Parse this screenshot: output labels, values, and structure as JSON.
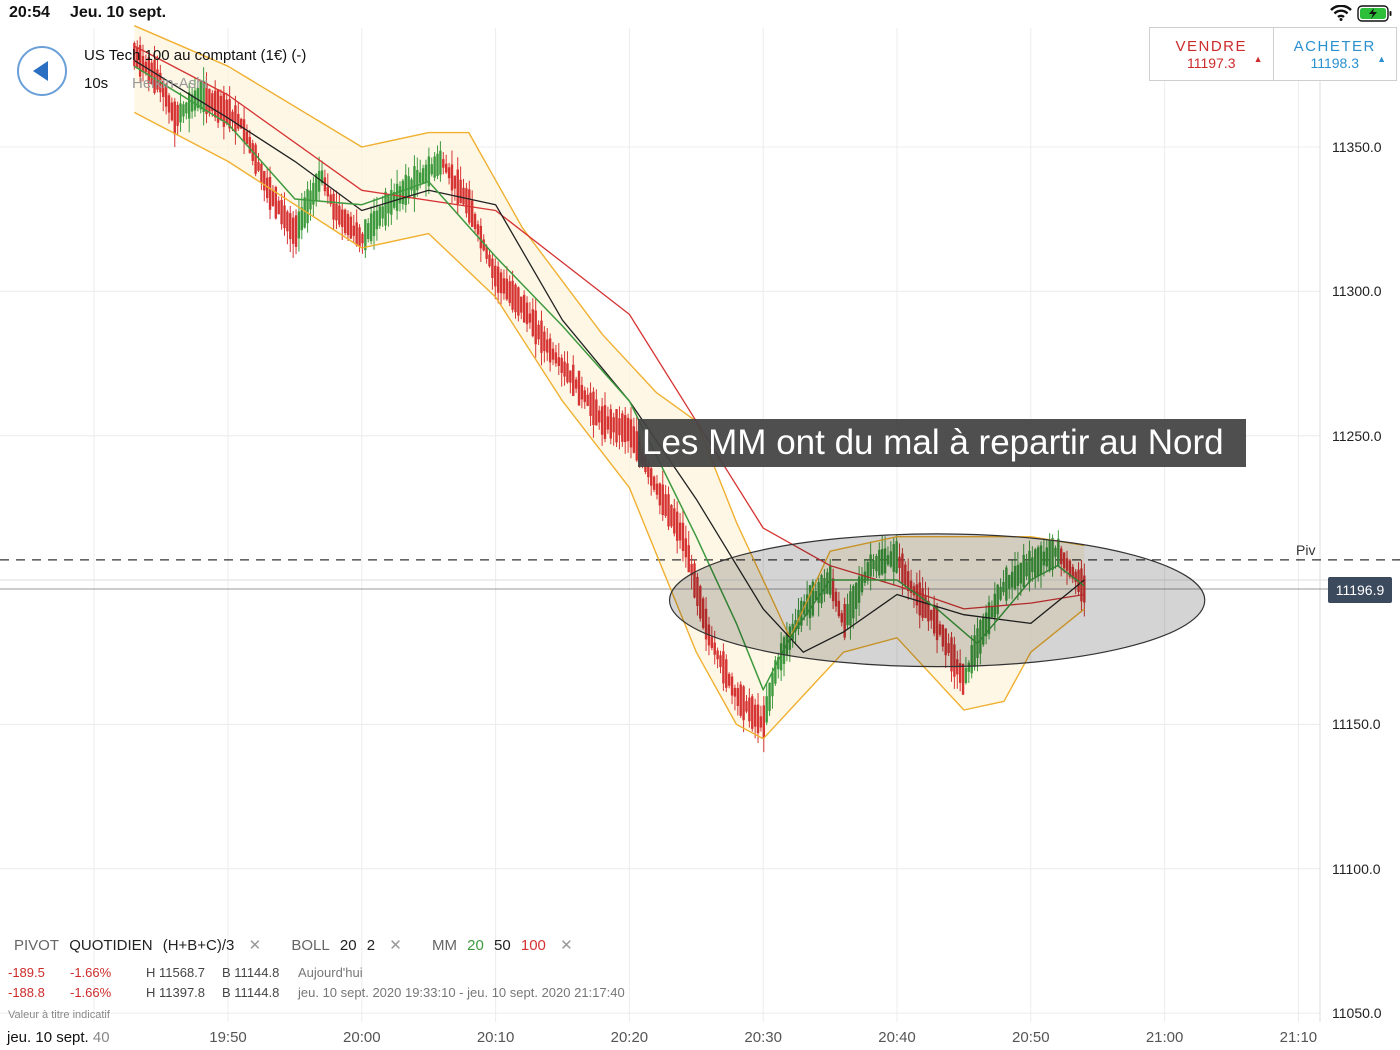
{
  "status_bar": {
    "time": "20:54",
    "date": "Jeu. 10 sept.",
    "wifi_icon": "wifi-icon",
    "battery_icon": "battery-charging-icon"
  },
  "instrument": {
    "name": "US Tech 100 au comptant (1€) (-)",
    "interval": "10s",
    "chart_type": "Heikin-Ashi"
  },
  "trade": {
    "sell_label": "VENDRE",
    "sell_price": "11197.3",
    "buy_label": "ACHETER",
    "buy_price": "11198.3"
  },
  "annotation": "Les MM ont du mal à repartir au Nord",
  "pivot_label": "Piv",
  "current_price": "11196.9",
  "legend": {
    "pivot": "PIVOT",
    "pivot_period": "QUOTIDIEN",
    "pivot_formula": "(H+B+C)/3",
    "boll": "BOLL",
    "boll_period": "20",
    "boll_dev": "2",
    "mm": "MM",
    "mm1": "20",
    "mm2": "50",
    "mm3": "100",
    "close_icon": "close-icon"
  },
  "stats": [
    {
      "change": "-189.5",
      "pct": "-1.66%",
      "high": "H 11568.7",
      "low": "B 11144.8",
      "period": "Aujourd'hui"
    },
    {
      "change": "-188.8",
      "pct": "-1.66%",
      "high": "H 11397.8",
      "low": "B 11144.8",
      "period": "jeu. 10 sept. 2020 19:33:10 - jeu. 10 sept. 2020 21:17:40"
    }
  ],
  "indicative_note": "Valeur à titre indicatif",
  "x_date_label": "jeu. 10 sept.",
  "x_date_suffix": "40",
  "colors": {
    "up": "#3e9a3e",
    "down": "#d63333",
    "bollinger": "#f0b030",
    "mm20": "#3e9a3e",
    "mm50": "#222222",
    "mm100": "#d63333"
  },
  "chart_data": {
    "type": "candlestick",
    "candle_style": "Heikin-Ashi",
    "y_ticks": [
      11350.0,
      11300.0,
      11250.0,
      11150.0,
      11100.0,
      11050.0
    ],
    "y_tick_labels": [
      "11350.0",
      "11300.0",
      "11250.0",
      "11150.0",
      "11100.0",
      "11050.0"
    ],
    "x_tick_labels": [
      "19:50",
      "20:00",
      "20:10",
      "20:20",
      "20:30",
      "20:40",
      "20:50",
      "21:00",
      "21:10"
    ],
    "pivot": 11207,
    "current": 11196.9,
    "path_points": [
      [
        "19:43",
        11382
      ],
      [
        "19:45",
        11372
      ],
      [
        "19:46",
        11360
      ],
      [
        "19:48",
        11368
      ],
      [
        "19:50",
        11362
      ],
      [
        "19:51",
        11358
      ],
      [
        "19:53",
        11335
      ],
      [
        "19:55",
        11320
      ],
      [
        "19:57",
        11340
      ],
      [
        "19:58",
        11328
      ],
      [
        "20:00",
        11318
      ],
      [
        "20:02",
        11330
      ],
      [
        "20:04",
        11338
      ],
      [
        "20:06",
        11345
      ],
      [
        "20:08",
        11330
      ],
      [
        "20:10",
        11305
      ],
      [
        "20:12",
        11295
      ],
      [
        "20:14",
        11280
      ],
      [
        "20:16",
        11268
      ],
      [
        "20:18",
        11255
      ],
      [
        "20:20",
        11252
      ],
      [
        "20:22",
        11232
      ],
      [
        "20:24",
        11215
      ],
      [
        "20:26",
        11180
      ],
      [
        "20:28",
        11160
      ],
      [
        "20:30",
        11150
      ],
      [
        "20:31",
        11170
      ],
      [
        "20:33",
        11190
      ],
      [
        "20:35",
        11200
      ],
      [
        "20:36",
        11185
      ],
      [
        "20:38",
        11205
      ],
      [
        "20:40",
        11208
      ],
      [
        "20:41",
        11198
      ],
      [
        "20:43",
        11185
      ],
      [
        "20:45",
        11165
      ],
      [
        "20:46",
        11178
      ],
      [
        "20:48",
        11198
      ],
      [
        "20:50",
        11205
      ],
      [
        "20:52",
        11210
      ],
      [
        "20:54",
        11196.9
      ]
    ],
    "mm20": [
      [
        "19:43",
        11378
      ],
      [
        "19:50",
        11358
      ],
      [
        "19:55",
        11332
      ],
      [
        "20:00",
        11330
      ],
      [
        "20:05",
        11338
      ],
      [
        "20:10",
        11312
      ],
      [
        "20:15",
        11288
      ],
      [
        "20:20",
        11262
      ],
      [
        "20:25",
        11215
      ],
      [
        "20:28",
        11185
      ],
      [
        "20:30",
        11162
      ],
      [
        "20:32",
        11180
      ],
      [
        "20:35",
        11200
      ],
      [
        "20:40",
        11200
      ],
      [
        "20:43",
        11190
      ],
      [
        "20:46",
        11178
      ],
      [
        "20:50",
        11200
      ],
      [
        "20:52",
        11205
      ],
      [
        "20:54",
        11198
      ]
    ],
    "mm50": [
      [
        "19:43",
        11380
      ],
      [
        "19:50",
        11360
      ],
      [
        "19:55",
        11345
      ],
      [
        "20:00",
        11328
      ],
      [
        "20:05",
        11335
      ],
      [
        "20:10",
        11330
      ],
      [
        "20:15",
        11290
      ],
      [
        "20:20",
        11262
      ],
      [
        "20:25",
        11228
      ],
      [
        "20:30",
        11190
      ],
      [
        "20:33",
        11175
      ],
      [
        "20:36",
        11182
      ],
      [
        "20:40",
        11195
      ],
      [
        "20:45",
        11188
      ],
      [
        "20:50",
        11185
      ],
      [
        "20:54",
        11200
      ]
    ],
    "mm100": [
      [
        "19:43",
        11385
      ],
      [
        "19:50",
        11368
      ],
      [
        "20:00",
        11335
      ],
      [
        "20:10",
        11328
      ],
      [
        "20:20",
        11292
      ],
      [
        "20:25",
        11255
      ],
      [
        "20:30",
        11218
      ],
      [
        "20:35",
        11205
      ],
      [
        "20:40",
        11198
      ],
      [
        "20:45",
        11190
      ],
      [
        "20:50",
        11192
      ],
      [
        "20:54",
        11195
      ]
    ],
    "boll_upper": [
      [
        "19:43",
        11392
      ],
      [
        "19:50",
        11378
      ],
      [
        "20:00",
        11350
      ],
      [
        "20:05",
        11355
      ],
      [
        "20:08",
        11355
      ],
      [
        "20:12",
        11322
      ],
      [
        "20:18",
        11285
      ],
      [
        "20:22",
        11265
      ],
      [
        "20:25",
        11255
      ],
      [
        "20:28",
        11220
      ],
      [
        "20:32",
        11180
      ],
      [
        "20:35",
        11210
      ],
      [
        "20:40",
        11215
      ],
      [
        "20:45",
        11215
      ],
      [
        "20:50",
        11215
      ],
      [
        "20:54",
        11212
      ]
    ],
    "boll_lower": [
      [
        "19:43",
        11362
      ],
      [
        "19:50",
        11345
      ],
      [
        "20:00",
        11315
      ],
      [
        "20:05",
        11320
      ],
      [
        "20:10",
        11298
      ],
      [
        "20:15",
        11262
      ],
      [
        "20:20",
        11232
      ],
      [
        "20:25",
        11175
      ],
      [
        "20:28",
        11150
      ],
      [
        "20:30",
        11145
      ],
      [
        "20:33",
        11160
      ],
      [
        "20:36",
        11175
      ],
      [
        "20:40",
        11180
      ],
      [
        "20:45",
        11155
      ],
      [
        "20:48",
        11158
      ],
      [
        "20:50",
        11175
      ],
      [
        "20:54",
        11190
      ]
    ],
    "ellipse_center": [
      "20:43",
      11193
    ],
    "ellipse_rx_minutes": 20,
    "ellipse_ry_points": 23
  }
}
